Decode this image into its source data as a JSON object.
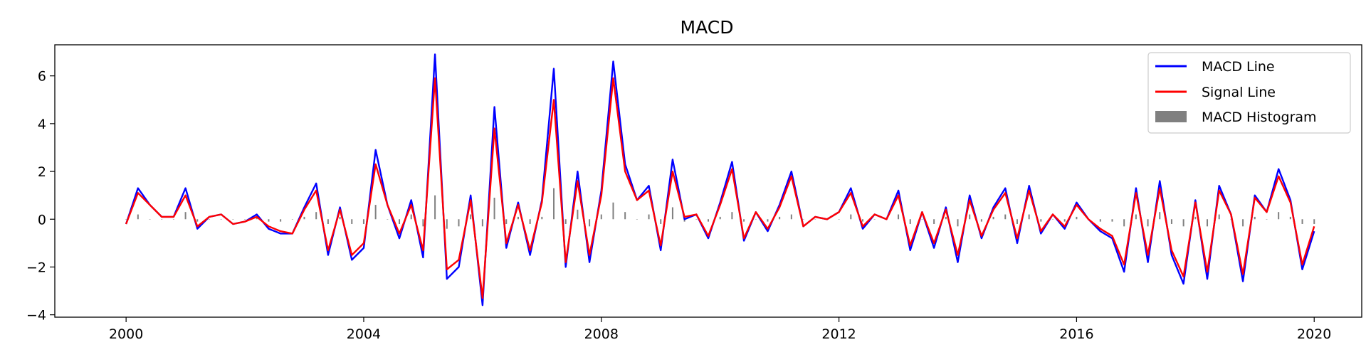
{
  "chart_data": {
    "type": "line",
    "title": "MACD",
    "xlabel": "",
    "ylabel": "",
    "xlim": [
      1998.8,
      2020.8
    ],
    "ylim": [
      -4.1,
      7.3
    ],
    "x_ticks": [
      "2000",
      "2004",
      "2008",
      "2012",
      "2016",
      "2020"
    ],
    "y_ticks": [
      "−4",
      "−2",
      "0",
      "2",
      "4",
      "6"
    ],
    "legend": {
      "position": "top-right",
      "entries": [
        "MACD Line",
        "Signal Line",
        "MACD Histogram"
      ]
    },
    "grid": false,
    "colors": {
      "macd": "#0000ff",
      "signal": "#ff0000",
      "histogram": "#808080"
    },
    "series": [
      {
        "name": "MACD Line",
        "x": [
          2000.0,
          2000.2,
          2000.4,
          2000.6,
          2000.8,
          2001.0,
          2001.2,
          2001.4,
          2001.6,
          2001.8,
          2002.0,
          2002.2,
          2002.4,
          2002.6,
          2002.8,
          2003.0,
          2003.2,
          2003.4,
          2003.6,
          2003.8,
          2004.0,
          2004.2,
          2004.4,
          2004.6,
          2004.8,
          2005.0,
          2005.2,
          2005.4,
          2005.6,
          2005.8,
          2006.0,
          2006.2,
          2006.4,
          2006.6,
          2006.8,
          2007.0,
          2007.2,
          2007.4,
          2007.6,
          2007.8,
          2008.0,
          2008.2,
          2008.4,
          2008.6,
          2008.8,
          2009.0,
          2009.2,
          2009.4,
          2009.6,
          2009.8,
          2010.0,
          2010.2,
          2010.4,
          2010.6,
          2010.8,
          2011.0,
          2011.2,
          2011.4,
          2011.6,
          2011.8,
          2012.0,
          2012.2,
          2012.4,
          2012.6,
          2012.8,
          2013.0,
          2013.2,
          2013.4,
          2013.6,
          2013.8,
          2014.0,
          2014.2,
          2014.4,
          2014.6,
          2014.8,
          2015.0,
          2015.2,
          2015.4,
          2015.6,
          2015.8,
          2016.0,
          2016.2,
          2016.4,
          2016.6,
          2016.8,
          2017.0,
          2017.2,
          2017.4,
          2017.6,
          2017.8,
          2018.0,
          2018.2,
          2018.4,
          2018.6,
          2018.8,
          2019.0,
          2019.2,
          2019.4,
          2019.6,
          2019.8,
          2020.0
        ],
        "values": [
          -0.2,
          1.3,
          0.6,
          0.1,
          0.1,
          1.3,
          -0.4,
          0.1,
          0.2,
          -0.2,
          -0.1,
          0.2,
          -0.4,
          -0.6,
          -0.6,
          0.5,
          1.5,
          -1.5,
          0.5,
          -1.7,
          -1.2,
          2.9,
          0.6,
          -0.8,
          0.8,
          -1.6,
          6.9,
          -2.5,
          -2.0,
          1.0,
          -3.6,
          4.7,
          -1.2,
          0.7,
          -1.5,
          0.8,
          6.3,
          -2.0,
          2.0,
          -1.8,
          1.2,
          6.6,
          2.3,
          0.8,
          1.4,
          -1.3,
          2.5,
          0.0,
          0.2,
          -0.8,
          0.7,
          2.4,
          -0.9,
          0.3,
          -0.5,
          0.6,
          2.0,
          -0.3,
          0.1,
          0.0,
          0.3,
          1.3,
          -0.4,
          0.2,
          0.0,
          1.2,
          -1.3,
          0.3,
          -1.2,
          0.5,
          -1.8,
          1.0,
          -0.8,
          0.5,
          1.3,
          -1.0,
          1.4,
          -0.6,
          0.2,
          -0.4,
          0.7,
          0.0,
          -0.5,
          -0.8,
          -2.2,
          1.3,
          -1.8,
          1.6,
          -1.5,
          -2.7,
          0.8,
          -2.5,
          1.4,
          0.2,
          -2.6,
          1.0,
          0.3,
          2.1,
          0.8,
          -2.1,
          -0.5
        ]
      },
      {
        "name": "Signal Line",
        "x": [
          2000.0,
          2000.2,
          2000.4,
          2000.6,
          2000.8,
          2001.0,
          2001.2,
          2001.4,
          2001.6,
          2001.8,
          2002.0,
          2002.2,
          2002.4,
          2002.6,
          2002.8,
          2003.0,
          2003.2,
          2003.4,
          2003.6,
          2003.8,
          2004.0,
          2004.2,
          2004.4,
          2004.6,
          2004.8,
          2005.0,
          2005.2,
          2005.4,
          2005.6,
          2005.8,
          2006.0,
          2006.2,
          2006.4,
          2006.6,
          2006.8,
          2007.0,
          2007.2,
          2007.4,
          2007.6,
          2007.8,
          2008.0,
          2008.2,
          2008.4,
          2008.6,
          2008.8,
          2009.0,
          2009.2,
          2009.4,
          2009.6,
          2009.8,
          2010.0,
          2010.2,
          2010.4,
          2010.6,
          2010.8,
          2011.0,
          2011.2,
          2011.4,
          2011.6,
          2011.8,
          2012.0,
          2012.2,
          2012.4,
          2012.6,
          2012.8,
          2013.0,
          2013.2,
          2013.4,
          2013.6,
          2013.8,
          2014.0,
          2014.2,
          2014.4,
          2014.6,
          2014.8,
          2015.0,
          2015.2,
          2015.4,
          2015.6,
          2015.8,
          2016.0,
          2016.2,
          2016.4,
          2016.6,
          2016.8,
          2017.0,
          2017.2,
          2017.4,
          2017.6,
          2017.8,
          2018.0,
          2018.2,
          2018.4,
          2018.6,
          2018.8,
          2019.0,
          2019.2,
          2019.4,
          2019.6,
          2019.8,
          2020.0
        ],
        "values": [
          -0.2,
          1.1,
          0.6,
          0.1,
          0.1,
          1.0,
          -0.3,
          0.1,
          0.2,
          -0.2,
          -0.1,
          0.1,
          -0.3,
          -0.5,
          -0.6,
          0.4,
          1.2,
          -1.3,
          0.4,
          -1.5,
          -1.0,
          2.3,
          0.6,
          -0.6,
          0.6,
          -1.3,
          5.9,
          -2.1,
          -1.7,
          0.8,
          -3.3,
          3.8,
          -1.0,
          0.6,
          -1.3,
          0.7,
          5.0,
          -1.8,
          1.6,
          -1.5,
          1.0,
          5.9,
          2.0,
          0.8,
          1.2,
          -1.1,
          2.0,
          0.1,
          0.2,
          -0.7,
          0.6,
          2.1,
          -0.8,
          0.3,
          -0.4,
          0.5,
          1.8,
          -0.3,
          0.1,
          0.0,
          0.3,
          1.1,
          -0.3,
          0.2,
          0.0,
          1.0,
          -1.1,
          0.3,
          -1.0,
          0.4,
          -1.5,
          0.8,
          -0.7,
          0.4,
          1.1,
          -0.8,
          1.2,
          -0.5,
          0.2,
          -0.3,
          0.6,
          0.0,
          -0.4,
          -0.7,
          -1.9,
          1.1,
          -1.5,
          1.3,
          -1.3,
          -2.4,
          0.7,
          -2.2,
          1.2,
          0.2,
          -2.3,
          0.9,
          0.3,
          1.8,
          0.7,
          -1.9,
          -0.3
        ]
      },
      {
        "name": "MACD Histogram",
        "x": [
          2000.0,
          2000.2,
          2000.4,
          2000.6,
          2000.8,
          2001.0,
          2001.2,
          2001.4,
          2001.6,
          2001.8,
          2002.0,
          2002.2,
          2002.4,
          2002.6,
          2002.8,
          2003.0,
          2003.2,
          2003.4,
          2003.6,
          2003.8,
          2004.0,
          2004.2,
          2004.4,
          2004.6,
          2004.8,
          2005.0,
          2005.2,
          2005.4,
          2005.6,
          2005.8,
          2006.0,
          2006.2,
          2006.4,
          2006.6,
          2006.8,
          2007.0,
          2007.2,
          2007.4,
          2007.6,
          2007.8,
          2008.0,
          2008.2,
          2008.4,
          2008.6,
          2008.8,
          2009.0,
          2009.2,
          2009.4,
          2009.6,
          2009.8,
          2010.0,
          2010.2,
          2010.4,
          2010.6,
          2010.8,
          2011.0,
          2011.2,
          2011.4,
          2011.6,
          2011.8,
          2012.0,
          2012.2,
          2012.4,
          2012.6,
          2012.8,
          2013.0,
          2013.2,
          2013.4,
          2013.6,
          2013.8,
          2014.0,
          2014.2,
          2014.4,
          2014.6,
          2014.8,
          2015.0,
          2015.2,
          2015.4,
          2015.6,
          2015.8,
          2016.0,
          2016.2,
          2016.4,
          2016.6,
          2016.8,
          2017.0,
          2017.2,
          2017.4,
          2017.6,
          2017.8,
          2018.0,
          2018.2,
          2018.4,
          2018.6,
          2018.8,
          2019.0,
          2019.2,
          2019.4,
          2019.6,
          2019.8,
          2020.0
        ],
        "values": [
          0.0,
          0.2,
          0.0,
          0.0,
          0.0,
          0.3,
          -0.1,
          0.0,
          0.0,
          0.0,
          0.0,
          0.1,
          -0.1,
          -0.1,
          0.0,
          0.1,
          0.3,
          -0.2,
          0.1,
          -0.2,
          -0.2,
          0.6,
          0.0,
          -0.2,
          0.2,
          -0.3,
          1.0,
          -0.4,
          -0.3,
          0.2,
          -0.3,
          0.9,
          -0.2,
          0.1,
          -0.2,
          0.1,
          1.3,
          -0.2,
          0.4,
          -0.3,
          0.2,
          0.7,
          0.3,
          0.0,
          0.2,
          -0.2,
          0.5,
          -0.1,
          0.0,
          -0.1,
          0.1,
          0.3,
          -0.1,
          0.0,
          -0.1,
          0.1,
          0.2,
          0.0,
          0.0,
          0.0,
          0.0,
          0.2,
          -0.1,
          0.0,
          0.0,
          0.2,
          -0.2,
          0.0,
          -0.2,
          0.1,
          -0.3,
          0.2,
          -0.1,
          0.1,
          0.2,
          -0.2,
          0.2,
          -0.1,
          0.0,
          -0.1,
          0.1,
          0.0,
          -0.1,
          -0.1,
          -0.3,
          0.2,
          -0.3,
          0.3,
          -0.2,
          -0.3,
          0.1,
          -0.3,
          0.2,
          0.0,
          -0.3,
          0.1,
          0.0,
          0.3,
          0.1,
          -0.2,
          -0.2
        ]
      }
    ]
  }
}
